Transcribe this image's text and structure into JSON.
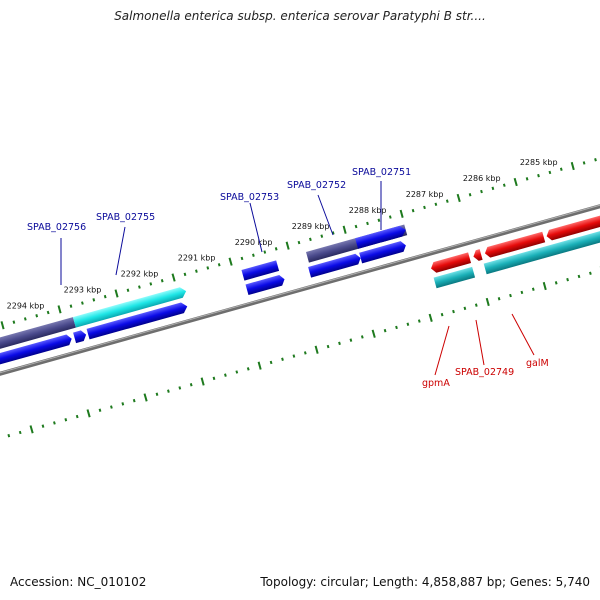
{
  "title": "Salmonella enterica subsp. enterica serovar Paratyphi B str....",
  "footer": {
    "accession": "Accession: NC_010102",
    "summary": "Topology: circular; Length: 4,858,887 bp; Genes: 5,740"
  },
  "colors": {
    "backbone": "#7a7a7a",
    "tick": "#1e7a1e",
    "forward_gene": "#0a0ae6",
    "forward_cds_dark": "#4a4a8c",
    "forward_cds_cyan": "#1ee6e6",
    "reverse_gene": "#e60a0a",
    "reverse_cds": "#1ab0b8",
    "forward_label": "#0a0a9a",
    "reverse_label": "#cc0000"
  },
  "kbp_labels": [
    "2285 kbp",
    "2286 kbp",
    "2287 kbp",
    "2288 kbp",
    "2289 kbp",
    "2290 kbp",
    "2291 kbp",
    "2292 kbp",
    "2293 kbp",
    "2294 kbp"
  ],
  "forward_genes": [
    "SPAB_02756",
    "SPAB_02755",
    "SPAB_02753",
    "SPAB_02752",
    "SPAB_02751"
  ],
  "reverse_genes": [
    "gpmA",
    "SPAB_02749",
    "galM"
  ]
}
